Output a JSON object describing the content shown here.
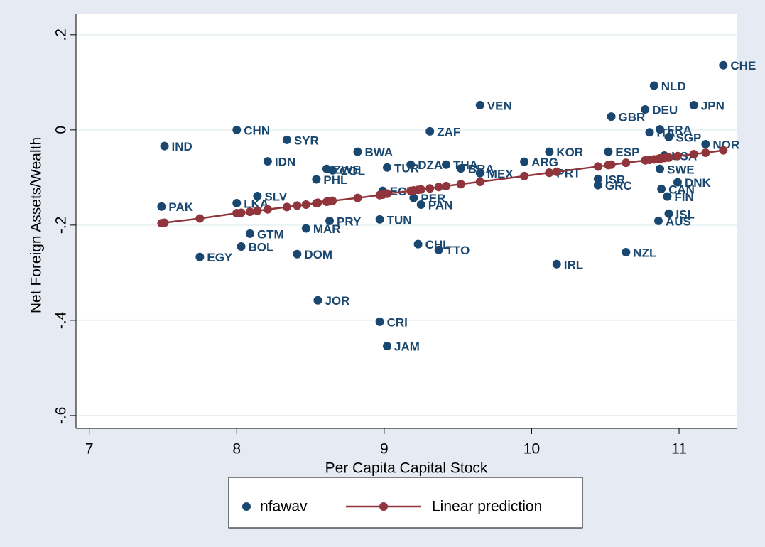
{
  "chart_data": {
    "type": "scatter",
    "x_label": "Per Capita Capital Stock",
    "y_label": "Net Foreign Assets/Wealth",
    "xlim": [
      6.91,
      11.39
    ],
    "ylim": [
      -0.627,
      0.243
    ],
    "xticks": [
      7,
      8,
      9,
      10,
      11
    ],
    "yticks": [
      {
        "value": 0.2,
        "label": ".2"
      },
      0,
      {
        "value": -0.2,
        "label": "-.2"
      },
      {
        "value": -0.4,
        "label": "-.4"
      },
      {
        "value": -0.6,
        "label": "-.6"
      }
    ],
    "grid": true,
    "legend": "bottom",
    "series": [
      {
        "name": "nfawav",
        "color": "#1a476f",
        "mode": "markers",
        "labels": [
          "PAK",
          "IND",
          "EGY",
          "CHN",
          "LKA",
          "BOL",
          "GTM",
          "SLV",
          "IDN",
          "SYR",
          "DOM",
          "MAR",
          "PHL",
          "JOR",
          "ZWE",
          "PRY",
          "COL",
          "BWA",
          "TUN",
          "CRI",
          "ECU",
          "TUR",
          "JAM",
          "DZA",
          "PER",
          "CHL",
          "PAN",
          "ZAF",
          "TTO",
          "THA",
          "BRA",
          "VEN",
          "MEX",
          "ARG",
          "KOR",
          "PRT",
          "IRL",
          "ISR",
          "GRC",
          "ESP",
          "GBR",
          "NZL",
          "DEU",
          "ITA",
          "NLD",
          "AUS",
          "FRA",
          "SWE",
          "CAN",
          "USA",
          "FIN",
          "SGP",
          "ISL",
          "DNK",
          "JPN",
          "NOR",
          "CHE"
        ],
        "x": [
          7.49,
          7.51,
          7.75,
          8.0,
          8.0,
          8.03,
          8.09,
          8.14,
          8.21,
          8.34,
          8.41,
          8.47,
          8.54,
          8.55,
          8.61,
          8.63,
          8.65,
          8.82,
          8.97,
          8.97,
          8.99,
          9.02,
          9.02,
          9.18,
          9.2,
          9.23,
          9.25,
          9.31,
          9.37,
          9.42,
          9.52,
          9.65,
          9.65,
          9.95,
          10.12,
          10.12,
          10.17,
          10.45,
          10.45,
          10.52,
          10.54,
          10.64,
          10.77,
          10.8,
          10.83,
          10.86,
          10.87,
          10.87,
          10.88,
          10.9,
          10.92,
          10.93,
          10.93,
          10.99,
          11.1,
          11.18,
          11.3
        ],
        "values": [
          -0.161,
          -0.034,
          -0.267,
          0.0,
          -0.154,
          -0.245,
          -0.218,
          -0.139,
          -0.066,
          -0.021,
          -0.261,
          -0.207,
          -0.104,
          -0.358,
          -0.082,
          -0.191,
          -0.085,
          -0.046,
          -0.188,
          -0.403,
          -0.128,
          -0.079,
          -0.454,
          -0.073,
          -0.143,
          -0.24,
          -0.157,
          -0.003,
          -0.252,
          -0.073,
          -0.081,
          0.052,
          -0.091,
          -0.067,
          -0.046,
          -0.09,
          -0.282,
          -0.103,
          -0.116,
          -0.046,
          0.028,
          -0.257,
          0.043,
          -0.005,
          0.093,
          -0.191,
          0.001,
          -0.082,
          -0.124,
          -0.054,
          -0.14,
          -0.015,
          -0.176,
          -0.11,
          0.052,
          -0.03,
          0.136
        ]
      },
      {
        "name": "Linear prediction",
        "color": "#90353b",
        "mode": "lines+markers",
        "x": [
          7.49,
          7.51,
          7.75,
          8.0,
          8.0,
          8.03,
          8.09,
          8.14,
          8.21,
          8.34,
          8.41,
          8.47,
          8.54,
          8.55,
          8.61,
          8.63,
          8.65,
          8.82,
          8.97,
          8.97,
          8.99,
          9.02,
          9.02,
          9.18,
          9.2,
          9.23,
          9.25,
          9.31,
          9.37,
          9.42,
          9.52,
          9.65,
          9.65,
          9.95,
          10.12,
          10.12,
          10.17,
          10.45,
          10.45,
          10.52,
          10.54,
          10.64,
          10.77,
          10.8,
          10.83,
          10.86,
          10.87,
          10.87,
          10.88,
          10.9,
          10.92,
          10.93,
          10.93,
          10.99,
          11.1,
          11.18,
          11.3
        ],
        "values": [
          -0.196,
          -0.195,
          -0.186,
          -0.175,
          -0.175,
          -0.174,
          -0.172,
          -0.17,
          -0.167,
          -0.162,
          -0.159,
          -0.157,
          -0.154,
          -0.153,
          -0.151,
          -0.15,
          -0.149,
          -0.143,
          -0.137,
          -0.137,
          -0.136,
          -0.134,
          -0.134,
          -0.128,
          -0.127,
          -0.126,
          -0.125,
          -0.123,
          -0.12,
          -0.118,
          -0.114,
          -0.109,
          -0.109,
          -0.097,
          -0.09,
          -0.09,
          -0.088,
          -0.077,
          -0.077,
          -0.074,
          -0.073,
          -0.069,
          -0.064,
          -0.063,
          -0.062,
          -0.061,
          -0.06,
          -0.06,
          -0.06,
          -0.059,
          -0.058,
          -0.058,
          -0.058,
          -0.055,
          -0.051,
          -0.048,
          -0.043
        ]
      }
    ]
  }
}
